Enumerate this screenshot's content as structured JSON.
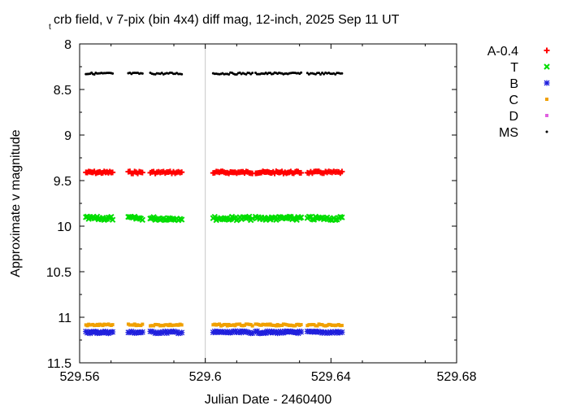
{
  "chart_data": {
    "type": "scatter",
    "title_sub": "t",
    "title": "crb field, v 7-pix (bin 4x4) diff mag, 12-inch, 2025 Sep 11 UT",
    "xlabel": "Julian Date - 2460400",
    "ylabel": "Approximate v magnitude",
    "xlim": [
      529.56,
      529.68
    ],
    "ylim": [
      8,
      11.5
    ],
    "y_inverted": true,
    "x_ticks": [
      "529.56",
      "529.6",
      "529.64",
      "529.68"
    ],
    "x_tick_values": [
      529.56,
      529.6,
      529.64,
      529.68
    ],
    "y_ticks": [
      "8",
      "8.5",
      "9",
      "9.5",
      "10",
      "10.5",
      "11",
      "11.5"
    ],
    "y_tick_values": [
      8,
      8.5,
      9,
      9.5,
      10,
      10.5,
      11,
      11.5
    ],
    "grid": "vertical line at 529.6",
    "legend_position": "right",
    "segments": [
      [
        529.562,
        529.5705,
        20
      ],
      [
        529.5755,
        529.58,
        10
      ],
      [
        529.5825,
        529.5925,
        20
      ],
      [
        529.6025,
        529.615,
        26
      ],
      [
        529.616,
        529.6305,
        32
      ],
      [
        529.6325,
        529.6435,
        22
      ]
    ],
    "series": [
      {
        "name": "A-0.4",
        "marker": "plus",
        "color": "#ff0000",
        "base": 9.41,
        "noise": 0.012
      },
      {
        "name": "T",
        "marker": "cross",
        "color": "#00dd00",
        "base": 9.915,
        "noise": 0.02
      },
      {
        "name": "B",
        "marker": "star",
        "color": "#2020dd",
        "base": 11.165,
        "noise": 0.012
      },
      {
        "name": "C",
        "marker": "square",
        "color": "#f0a000",
        "base": 11.085,
        "noise": 0.01
      },
      {
        "name": "D",
        "marker": "square",
        "color": "#e060e0",
        "base": null,
        "noise": 0
      },
      {
        "name": "MS",
        "marker": "dot",
        "color": "#000000",
        "base": 8.325,
        "noise": 0.01
      }
    ]
  }
}
